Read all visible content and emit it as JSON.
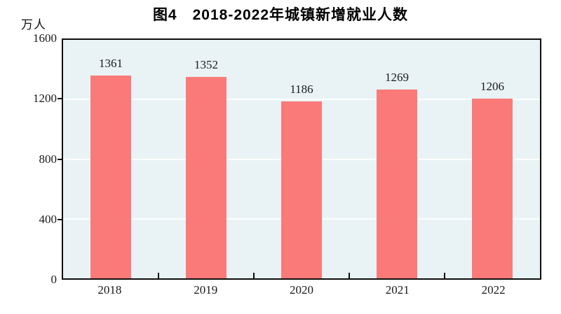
{
  "header": {
    "title": "图4　2018-2022年城镇新增就业人数",
    "unit_label": "万人"
  },
  "colors": {
    "bar": "#fa7a7a",
    "plot_background": "#e9f3f5",
    "gridline": "rgba(255,255,255,0.85)",
    "axis": "#0e0e0e",
    "text": "#1a1a1a"
  },
  "chart_data": {
    "type": "bar",
    "title": "图4　2018-2022年城镇新增就业人数",
    "categories": [
      "2018",
      "2019",
      "2020",
      "2021",
      "2022"
    ],
    "values": [
      1361,
      1352,
      1186,
      1269,
      1206
    ],
    "xlabel": "",
    "ylabel": "万人",
    "ylim": [
      0,
      1600
    ],
    "yticks": [
      0,
      400,
      800,
      1200,
      1600
    ],
    "grid": true,
    "legend_position": "none",
    "bar_width_fraction": 0.42,
    "value_labels_shown": true
  }
}
